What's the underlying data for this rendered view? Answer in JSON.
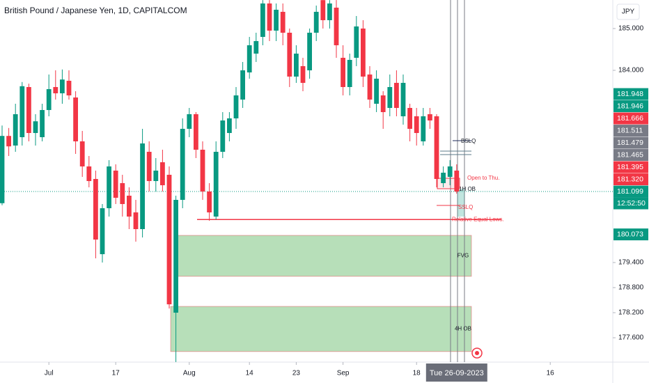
{
  "chart_data": {
    "type": "candlestick",
    "title": "British Pound / Japanese Yen, 1D, CAPITALCOM",
    "currency": "JPY",
    "up_color": "#089981",
    "down_color": "#f23645",
    "ylim": [
      177.017,
      185.683
    ],
    "yticks": [
      {
        "value": 185,
        "label": "185.000"
      },
      {
        "value": 184,
        "label": "184.000"
      },
      {
        "value": 179.4,
        "label": "179.400"
      },
      {
        "value": 178.8,
        "label": "178.800"
      },
      {
        "value": 178.2,
        "label": "178.200"
      },
      {
        "value": 177.6,
        "label": "177.600"
      }
    ],
    "xticks": [
      {
        "value": 7,
        "label": "Jul"
      },
      {
        "value": 17,
        "label": "17"
      },
      {
        "value": 28,
        "label": "Aug"
      },
      {
        "value": 37,
        "label": "14"
      },
      {
        "value": 44,
        "label": "23"
      },
      {
        "value": 51,
        "label": "Sep"
      },
      {
        "value": 62,
        "label": "18"
      },
      {
        "value": 82,
        "label": "16"
      }
    ],
    "crosshair": {
      "value": 68,
      "label": "Tue 26-09-2023"
    },
    "open": [
      180.82,
      182.43,
      182.2,
      182.4,
      183.6,
      182.5,
      182.4,
      183.05,
      183.6,
      183.45,
      183.75,
      183.35,
      182.3,
      181.7,
      181.4,
      179.6,
      180.7,
      181.6,
      181.3,
      181.0,
      180.6,
      180.2,
      182.05,
      181.35,
      181.8,
      181.5,
      178.2,
      180.9,
      182.6,
      182.95,
      182.1,
      181.1,
      180.5,
      182.05,
      182.5,
      182.85,
      183.3,
      183.95,
      184.4,
      184.8,
      185.6,
      184.95,
      185.4,
      184.9,
      183.85,
      184.1,
      184.0,
      184.9,
      185.68,
      185.2,
      185.5,
      184.3,
      183.6,
      184.3,
      185.0,
      183.9,
      183.2,
      183.4,
      183.1,
      183.7,
      182.9,
      183.1,
      182.9,
      182.3,
      182.95,
      182.9,
      181.3,
      181.45,
      181.6
    ],
    "high": [
      182.68,
      182.62,
      183.2,
      183.72,
      183.68,
      182.95,
      183.2,
      183.9,
      184.0,
      184.02,
      184.0,
      183.5,
      182.55,
      181.95,
      181.6,
      180.8,
      181.85,
      181.75,
      181.5,
      181.2,
      180.9,
      182.6,
      182.3,
      181.9,
      182.1,
      181.7,
      181.0,
      182.85,
      183.1,
      183.0,
      182.3,
      181.3,
      182.3,
      183.0,
      183.0,
      183.6,
      184.2,
      184.8,
      184.9,
      185.68,
      185.68,
      185.6,
      185.6,
      185.0,
      184.6,
      184.3,
      185.0,
      185.55,
      185.68,
      185.68,
      185.68,
      184.6,
      184.4,
      185.3,
      185.2,
      184.1,
      184.0,
      183.5,
      183.9,
      184.0,
      183.9,
      183.2,
      183.1,
      183.1,
      183.1,
      182.95,
      181.7,
      181.85,
      181.75
    ],
    "low": [
      180.77,
      181.95,
      182.05,
      182.2,
      182.3,
      182.2,
      182.3,
      182.9,
      183.3,
      183.2,
      183.3,
      182.0,
      181.45,
      181.2,
      179.5,
      179.4,
      180.5,
      180.8,
      180.5,
      180.2,
      179.9,
      180.0,
      181.1,
      181.1,
      181.1,
      178.3,
      177.02,
      180.7,
      182.4,
      181.9,
      180.9,
      180.4,
      180.43,
      181.9,
      182.3,
      182.6,
      183.1,
      183.8,
      184.2,
      184.6,
      184.7,
      184.7,
      184.6,
      183.6,
      183.7,
      183.5,
      183.8,
      184.7,
      185.0,
      185.0,
      184.3,
      183.4,
      183.4,
      184.1,
      183.6,
      183.1,
      183.0,
      182.6,
      182.9,
      182.9,
      182.7,
      182.3,
      182.2,
      182.2,
      182.6,
      181.2,
      181.2,
      181.25,
      181.05
    ],
    "close": [
      182.43,
      182.18,
      182.95,
      183.62,
      182.5,
      182.78,
      183.05,
      183.55,
      183.45,
      183.78,
      183.4,
      182.3,
      181.7,
      181.35,
      179.95,
      180.7,
      181.7,
      180.95,
      180.8,
      180.5,
      180.2,
      182.25,
      181.35,
      181.6,
      181.25,
      178.4,
      180.9,
      182.6,
      182.95,
      182.1,
      181.1,
      180.6,
      182.05,
      182.8,
      182.85,
      183.4,
      184.0,
      184.6,
      184.7,
      185.6,
      184.95,
      185.45,
      184.9,
      183.85,
      184.4,
      183.7,
      184.9,
      185.4,
      185.2,
      185.6,
      184.6,
      183.6,
      184.25,
      185.05,
      183.85,
      183.3,
      183.8,
      183.0,
      183.6,
      183.1,
      183.7,
      182.6,
      182.5,
      182.9,
      182.8,
      181.4,
      181.55,
      181.7,
      181.099
    ],
    "zones": [
      {
        "label": "FVG",
        "top": 180.05,
        "bottom": 179.07
      },
      {
        "label": "4H OB",
        "top": 178.35,
        "bottom": 177.27
      }
    ],
    "level": {
      "label": "Relative Equal Lows.",
      "value": 180.43
    },
    "annotations": [
      "BSLQ",
      "Open to Thu.",
      "1H OB",
      "SSLQ"
    ],
    "price_labels": [
      {
        "value": 181.948,
        "label": "181.948",
        "color": "#089981"
      },
      {
        "value": 181.946,
        "label": "181.946",
        "color": "#089981"
      },
      {
        "value": 181.666,
        "label": "181.666",
        "color": "#f23645"
      },
      {
        "value": 181.511,
        "label": "181.511",
        "color": "#787b86"
      },
      {
        "value": 181.479,
        "label": "181.479",
        "color": "#787b86"
      },
      {
        "value": 181.465,
        "label": "181.465",
        "color": "#787b86"
      },
      {
        "value": 181.395,
        "label": "181.395",
        "color": "#f23645"
      },
      {
        "value": 181.32,
        "label": "181.320",
        "color": "#f23645"
      },
      {
        "value": 181.099,
        "label": "181.099",
        "color": "#089981"
      },
      {
        "value": 180.073,
        "label": "180.073",
        "color": "#089981"
      }
    ],
    "countdown": "12:52:50"
  }
}
